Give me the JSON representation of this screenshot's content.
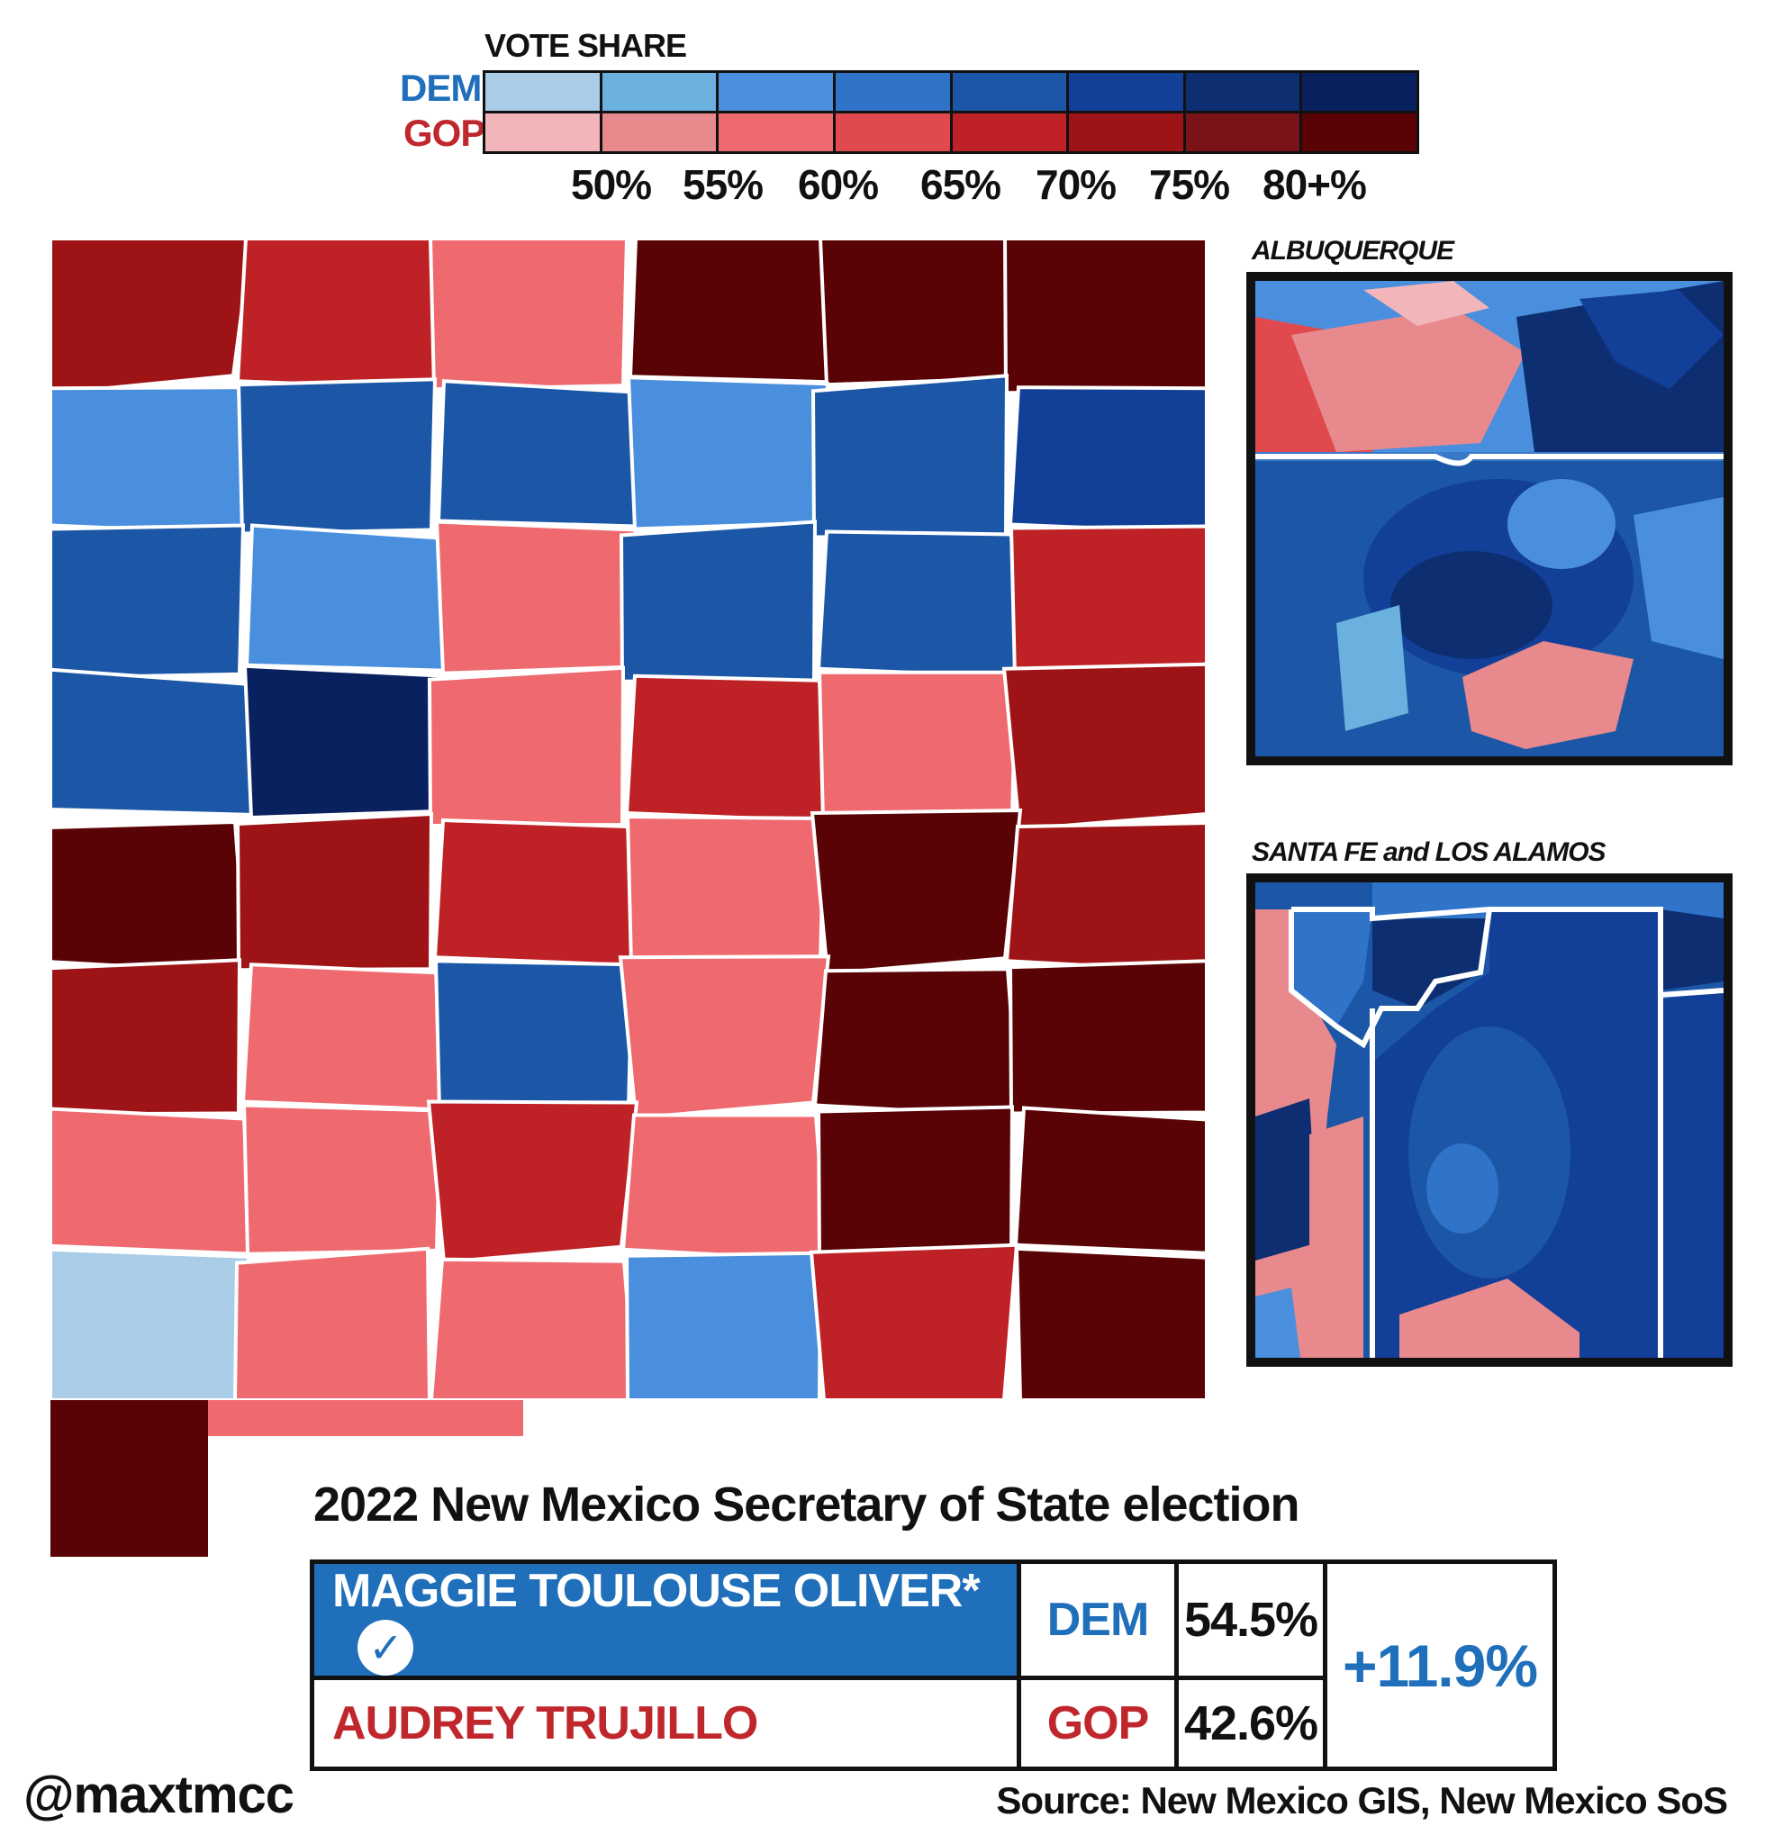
{
  "legend": {
    "title": "VOTE SHARE",
    "dem_label": "DEM",
    "gop_label": "GOP",
    "ticks": [
      "50%",
      "55%",
      "60%",
      "65%",
      "70%",
      "75%",
      "80+%"
    ],
    "dem_colors": [
      "#a9cde6",
      "#6ab1e0",
      "#4a8fde",
      "#2f74c8",
      "#1b57a6",
      "#123f98",
      "#0d2f72",
      "#0a2160"
    ],
    "gop_colors": [
      "#f2b5b9",
      "#e8898d",
      "#ef6a6f",
      "#e04a4f",
      "#bf2226",
      "#9e1416",
      "#7a1317",
      "#5a0306"
    ]
  },
  "map": {
    "regions": [
      {
        "r": 0.75
      },
      {
        "r": 0.7
      },
      {
        "r": 0.6
      },
      {
        "r": 0.8
      },
      {
        "r": 0.8
      },
      {
        "r": 0.8
      },
      {
        "d": 0.55
      },
      {
        "d": 0.65
      },
      {
        "d": 0.65
      },
      {
        "d": 0.55
      },
      {
        "d": 0.7
      },
      {
        "d": 0.75
      },
      {
        "d": 0.7
      },
      {
        "d": 0.6
      },
      {
        "r": 0.55
      },
      {
        "d": 0.65
      },
      {
        "d": 0.65
      },
      {
        "r": 0.65
      },
      {
        "d": 0.7
      },
      {
        "d": 0.8
      },
      {
        "r": 0.55
      },
      {
        "r": 0.7
      },
      {
        "r": 0.6
      },
      {
        "r": 0.75
      },
      {
        "r": 0.8
      },
      {
        "r": 0.75
      },
      {
        "r": 0.65
      },
      {
        "r": 0.55
      },
      {
        "r": 0.8
      },
      {
        "r": 0.75
      },
      {
        "r": 0.75
      },
      {
        "r": 0.6
      },
      {
        "d": 0.65
      },
      {
        "r": 0.6
      },
      {
        "r": 0.8
      },
      {
        "r": 0.8
      },
      {
        "r": 0.55
      },
      {
        "r": 0.6
      },
      {
        "r": 0.7
      },
      {
        "r": 0.6
      },
      {
        "r": 0.8
      },
      {
        "r": 0.8
      },
      {
        "d": 0.5
      },
      {
        "r": 0.55
      },
      {
        "r": 0.6
      },
      {
        "d": 0.6
      },
      {
        "r": 0.7
      },
      {
        "r": 0.8
      }
    ]
  },
  "insets": {
    "albuquerque_label": "ALBUQUERQUE",
    "santa_fe_label": "SANTA FE and LOS ALAMOS"
  },
  "title": "2022 New Mexico Secretary of State election",
  "results": {
    "dem": {
      "name": "MAGGIE TOULOUSE OLIVER*",
      "party": "DEM",
      "pct": "54.5%",
      "winner": true
    },
    "gop": {
      "name": "AUDREY TRUJILLO",
      "party": "GOP",
      "pct": "42.6%"
    },
    "margin": "+11.9%"
  },
  "credit": "@maxtmcc",
  "source": "Source: New Mexico GIS, New Mexico SoS"
}
